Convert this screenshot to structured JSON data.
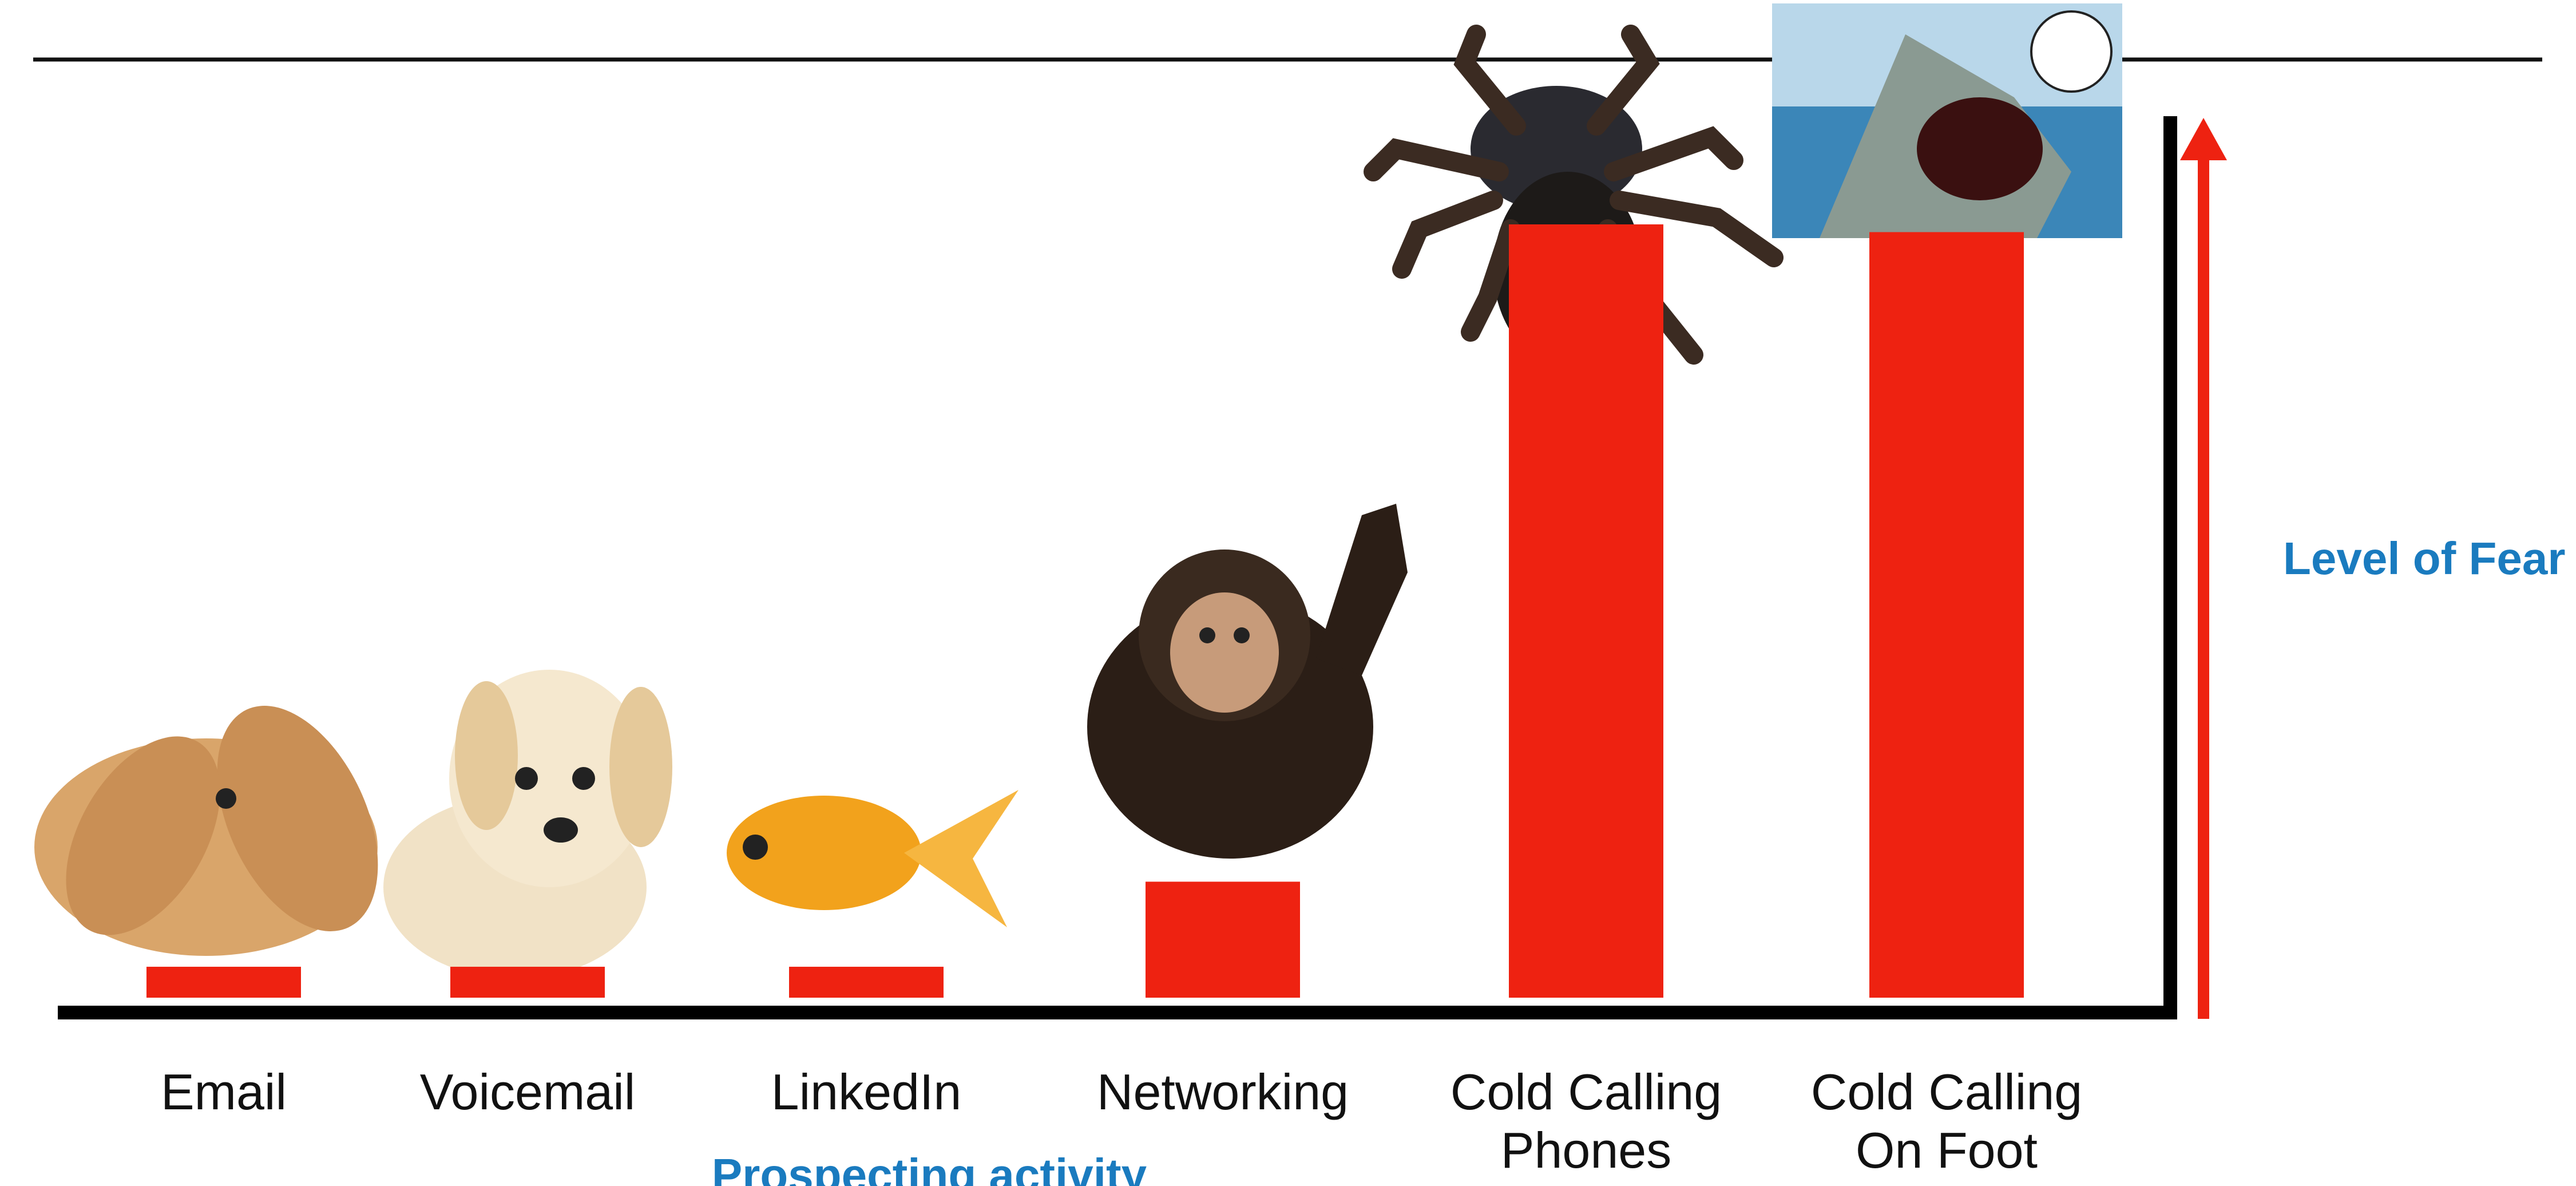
{
  "chart_data": {
    "type": "bar",
    "categories": [
      "Email",
      "Voicemail",
      "LinkedIn",
      "Networking",
      "Cold Calling Phones",
      "Cold Calling On Foot"
    ],
    "values": [
      4,
      4,
      4,
      15,
      100,
      99
    ],
    "color": "#ee2211",
    "x_label": "Prospecting activity",
    "y_label": "Level of Fear"
  }
}
